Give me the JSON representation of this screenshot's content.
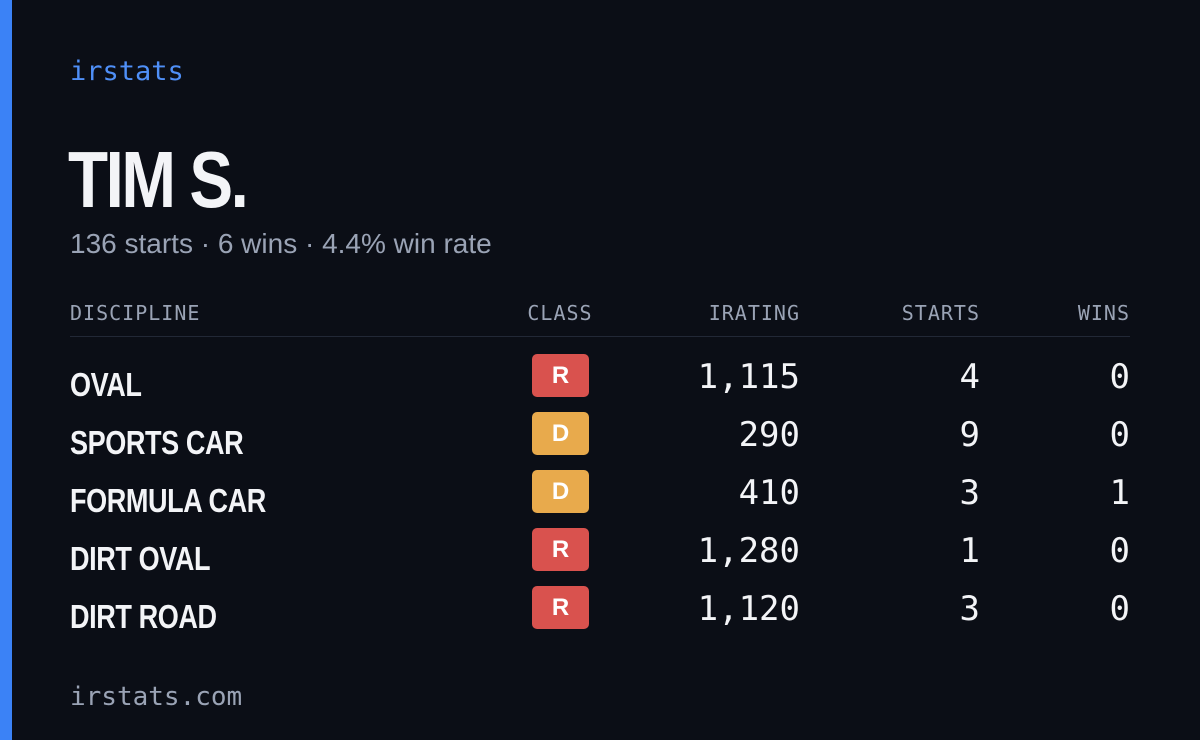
{
  "brand": "irstats",
  "driver": {
    "name": "TIM S.",
    "summary": "136 starts · 6 wins · 4.4% win rate"
  },
  "table": {
    "headers": [
      "DISCIPLINE",
      "CLASS",
      "IRATING",
      "STARTS",
      "WINS"
    ],
    "rows": [
      {
        "discipline": "OVAL",
        "class": "R",
        "class_color": "#d9524e",
        "irating": "1,115",
        "starts": "4",
        "wins": "0"
      },
      {
        "discipline": "SPORTS CAR",
        "class": "D",
        "class_color": "#e8aa4c",
        "irating": "290",
        "starts": "9",
        "wins": "0"
      },
      {
        "discipline": "FORMULA CAR",
        "class": "D",
        "class_color": "#e8aa4c",
        "irating": "410",
        "starts": "3",
        "wins": "1"
      },
      {
        "discipline": "DIRT OVAL",
        "class": "R",
        "class_color": "#d9524e",
        "irating": "1,280",
        "starts": "1",
        "wins": "0"
      },
      {
        "discipline": "DIRT ROAD",
        "class": "R",
        "class_color": "#d9524e",
        "irating": "1,120",
        "starts": "3",
        "wins": "0"
      }
    ]
  },
  "footer": "irstats.com"
}
